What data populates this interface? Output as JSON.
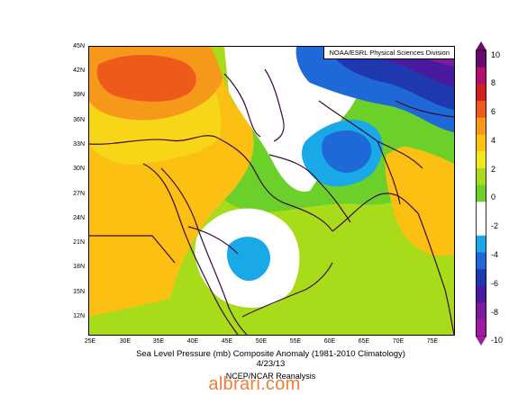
{
  "credit": "NOAA/ESRL Physical Sciences Division",
  "caption": {
    "title": "Sea Level Pressure (mb) Composite Anomaly (1981-2010 Climatology)",
    "date": "4/23/13",
    "source": "NCEP/NCAR Reanalysis"
  },
  "watermark": "albrari.com",
  "axes": {
    "lat_labels": [
      "45N",
      "42N",
      "39N",
      "36N",
      "33N",
      "30N",
      "27N",
      "24N",
      "21N",
      "18N",
      "15N",
      "12N"
    ],
    "lon_labels": [
      "25E",
      "30E",
      "35E",
      "40E",
      "45E",
      "50E",
      "55E",
      "60E",
      "65E",
      "70E",
      "75E"
    ]
  },
  "colorbar": {
    "labels": [
      "10",
      "8",
      "6",
      "4",
      "2",
      "0",
      "-2",
      "-4",
      "-6",
      "-8",
      "-10"
    ],
    "colors": [
      "#6a0a6e",
      "#b0106e",
      "#d02020",
      "#ee5a1a",
      "#f6981a",
      "#fbc012",
      "#f3e81a",
      "#a8dc1a",
      "#6cd02a",
      "#ffffff",
      "#ffffff",
      "#19a8e8",
      "#1e68d8",
      "#1e38b0",
      "#4a1a9e",
      "#7e1aa0",
      "#a21aa0"
    ]
  },
  "map": {
    "field_colors": {
      "orange_high": "#f6981a",
      "red_high": "#ee5a1a",
      "yellow": "#fbc012",
      "light_yellow": "#f3e81a",
      "light_green": "#a8dc1a",
      "green": "#6cd02a",
      "white": "#ffffff",
      "light_blue": "#19a8e8",
      "blue": "#1e68d8",
      "dark_blue": "#1e38b0",
      "violet": "#4a1a9e",
      "purple": "#7e1aa0"
    }
  }
}
